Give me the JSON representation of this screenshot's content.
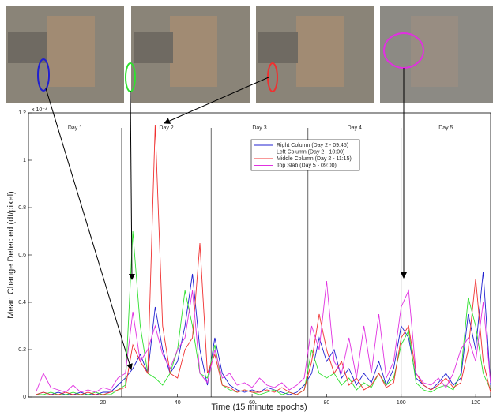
{
  "chart_data": {
    "type": "line",
    "y_label": "Mean Change Detected (dt/pixel)",
    "x_label": "Time (15 minute epochs)",
    "y_exponent": "x 10⁻⁴",
    "xlim": [
      0,
      124
    ],
    "ylim": [
      0,
      1.2
    ],
    "xticks": [
      20,
      40,
      60,
      80,
      100,
      120
    ],
    "yticks": [
      0,
      0.2,
      0.4,
      0.6,
      0.8,
      1,
      1.2
    ],
    "day_dividers": [
      25,
      49,
      75,
      100
    ],
    "days": [
      "Day 1",
      "Day 2",
      "Day 3",
      "Day 4",
      "Day 5"
    ],
    "x": [
      2,
      4,
      6,
      8,
      10,
      12,
      14,
      16,
      18,
      20,
      22,
      24,
      26,
      28,
      30,
      32,
      34,
      36,
      38,
      40,
      42,
      44,
      46,
      48,
      50,
      52,
      54,
      56,
      58,
      60,
      62,
      64,
      66,
      68,
      70,
      72,
      74,
      76,
      78,
      80,
      82,
      84,
      86,
      88,
      90,
      92,
      94,
      96,
      98,
      100,
      102,
      104,
      106,
      108,
      110,
      112,
      114,
      116,
      118,
      120,
      122,
      124
    ],
    "series": [
      {
        "name": "Right Column (Day 2 - 09:45)",
        "color": "#2020d0",
        "values": [
          0.01,
          0.02,
          0.01,
          0.02,
          0.01,
          0.01,
          0.02,
          0.01,
          0.01,
          0.02,
          0.02,
          0.05,
          0.08,
          0.12,
          0.18,
          0.1,
          0.38,
          0.2,
          0.1,
          0.15,
          0.3,
          0.52,
          0.2,
          0.05,
          0.25,
          0.1,
          0.05,
          0.03,
          0.02,
          0.03,
          0.02,
          0.04,
          0.03,
          0.02,
          0.01,
          0.02,
          0.05,
          0.1,
          0.25,
          0.15,
          0.2,
          0.08,
          0.12,
          0.05,
          0.1,
          0.06,
          0.15,
          0.05,
          0.12,
          0.3,
          0.25,
          0.08,
          0.05,
          0.03,
          0.06,
          0.1,
          0.05,
          0.08,
          0.35,
          0.2,
          0.53,
          0.05
        ]
      },
      {
        "name": "Left Column (Day 2 - 10:00)",
        "color": "#30e030",
        "values": [
          0.01,
          0.01,
          0.02,
          0.01,
          0.01,
          0.02,
          0.01,
          0.01,
          0.02,
          0.01,
          0.01,
          0.03,
          0.05,
          0.7,
          0.3,
          0.1,
          0.08,
          0.05,
          0.1,
          0.2,
          0.45,
          0.3,
          0.1,
          0.08,
          0.22,
          0.05,
          0.03,
          0.02,
          0.03,
          0.02,
          0.01,
          0.02,
          0.03,
          0.01,
          0.02,
          0.01,
          0.03,
          0.2,
          0.1,
          0.08,
          0.1,
          0.05,
          0.08,
          0.03,
          0.06,
          0.04,
          0.1,
          0.05,
          0.08,
          0.22,
          0.28,
          0.06,
          0.03,
          0.02,
          0.04,
          0.05,
          0.03,
          0.1,
          0.42,
          0.3,
          0.1,
          0.03
        ]
      },
      {
        "name": "Middle Column (Day 2 - 11:15)",
        "color": "#f03030",
        "values": [
          0.01,
          0.02,
          0.01,
          0.01,
          0.02,
          0.01,
          0.01,
          0.02,
          0.01,
          0.01,
          0.02,
          0.03,
          0.04,
          0.22,
          0.15,
          0.1,
          1.15,
          0.3,
          0.1,
          0.08,
          0.2,
          0.25,
          0.65,
          0.1,
          0.18,
          0.05,
          0.04,
          0.02,
          0.03,
          0.02,
          0.02,
          0.03,
          0.02,
          0.04,
          0.02,
          0.01,
          0.03,
          0.15,
          0.35,
          0.2,
          0.1,
          0.15,
          0.05,
          0.08,
          0.03,
          0.05,
          0.1,
          0.04,
          0.06,
          0.25,
          0.3,
          0.1,
          0.05,
          0.03,
          0.05,
          0.08,
          0.04,
          0.06,
          0.2,
          0.5,
          0.15,
          0.02
        ]
      },
      {
        "name": "Top Slab (Day 5 - 09:00)",
        "color": "#e030e0",
        "values": [
          0.02,
          0.1,
          0.04,
          0.03,
          0.02,
          0.05,
          0.02,
          0.03,
          0.02,
          0.04,
          0.03,
          0.08,
          0.1,
          0.36,
          0.15,
          0.2,
          0.3,
          0.18,
          0.12,
          0.2,
          0.25,
          0.45,
          0.1,
          0.06,
          0.2,
          0.08,
          0.1,
          0.05,
          0.06,
          0.04,
          0.08,
          0.05,
          0.04,
          0.06,
          0.03,
          0.05,
          0.08,
          0.3,
          0.2,
          0.49,
          0.15,
          0.1,
          0.25,
          0.08,
          0.3,
          0.1,
          0.35,
          0.08,
          0.15,
          0.38,
          0.45,
          0.1,
          0.06,
          0.05,
          0.08,
          0.04,
          0.1,
          0.2,
          0.25,
          0.15,
          0.4,
          0.06
        ]
      }
    ]
  }
}
